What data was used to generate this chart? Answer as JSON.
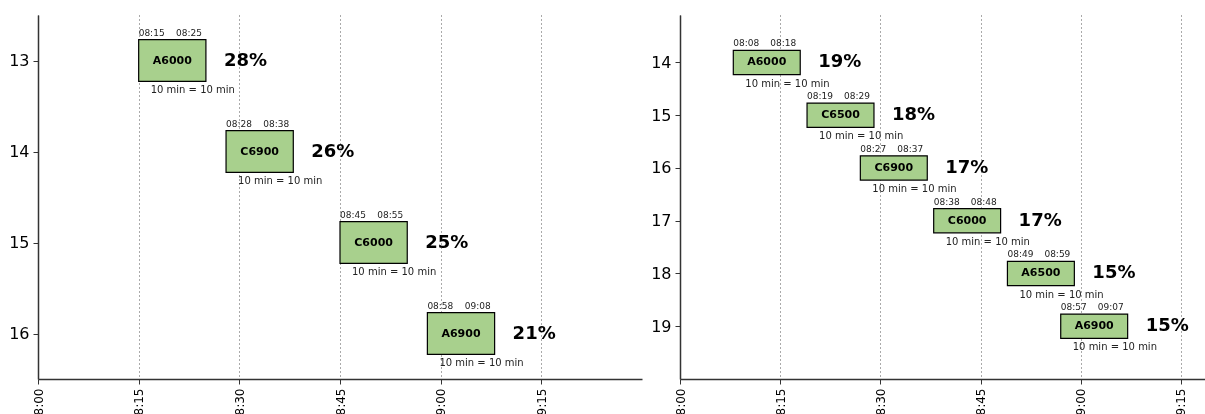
{
  "chart_data": [
    {
      "type": "bar",
      "orientation": "horizontal",
      "x": [
        13,
        14,
        15,
        16
      ],
      "base": [
        8.25,
        8.467,
        8.75,
        8.967
      ],
      "values": [
        0.167,
        0.167,
        0.167,
        0.167
      ],
      "color": "#a8d08d",
      "xlim": [
        8,
        9.5
      ],
      "xticks": [
        {
          "value": 8,
          "label": "8:00"
        },
        {
          "value": 8.25,
          "label": "8:15"
        },
        {
          "value": 8.5,
          "label": "8:30"
        },
        {
          "value": 8.75,
          "label": "8:45"
        },
        {
          "value": 9,
          "label": "9:00"
        },
        {
          "value": 9.25,
          "label": "9:15"
        }
      ],
      "ylim": [
        16.5,
        12.5
      ],
      "yticks": [
        13,
        14,
        15,
        16
      ],
      "grid": "x",
      "annotations": [
        "08:15",
        "08:25",
        "A6000",
        "10 min  = 10 min",
        "28%",
        "08:28",
        "08:38",
        "C6900",
        "10 min  = 10 min",
        "26%",
        "08:45",
        "08:55",
        "C6000",
        "10 min  = 10 min",
        "25%",
        "08:58",
        "09:08",
        "A6900",
        "10 min  = 10 min",
        "21%"
      ]
    },
    {
      "type": "bar",
      "orientation": "horizontal",
      "x": [
        14,
        15,
        16,
        17,
        18,
        19
      ],
      "base": [
        8.133,
        8.317,
        8.45,
        8.633,
        8.817,
        8.95
      ],
      "values": [
        0.167,
        0.167,
        0.167,
        0.167,
        0.167,
        0.167
      ],
      "color": "#a8d08d",
      "xlim": [
        8,
        9.31
      ],
      "xticks": [
        {
          "value": 8,
          "label": "8:00"
        },
        {
          "value": 8.25,
          "label": "8:15"
        },
        {
          "value": 8.5,
          "label": "8:30"
        },
        {
          "value": 8.75,
          "label": "8:45"
        },
        {
          "value": 9,
          "label": "9:00"
        },
        {
          "value": 9.25,
          "label": "9:15"
        }
      ],
      "ylim": [
        20,
        13.1
      ],
      "yticks": [
        14,
        15,
        16,
        17,
        18,
        19
      ],
      "grid": "x",
      "annotations": [
        "08:08",
        "08:18",
        "A6000",
        "10 min  = 10 min",
        "19%",
        "08:19",
        "08:29",
        "C6500",
        "10 min  = 10 min",
        "18%",
        "08:27",
        "08:37",
        "C6900",
        "10 min  = 10 min",
        "17%",
        "08:38",
        "08:48",
        "C6000",
        "10 min  = 10 min",
        "17%",
        "08:49",
        "08:59",
        "A6500",
        "10 min  = 10 min",
        "15%",
        "08:57",
        "09:07",
        "A6900",
        "10 min  = 10 min",
        "15%"
      ]
    }
  ]
}
